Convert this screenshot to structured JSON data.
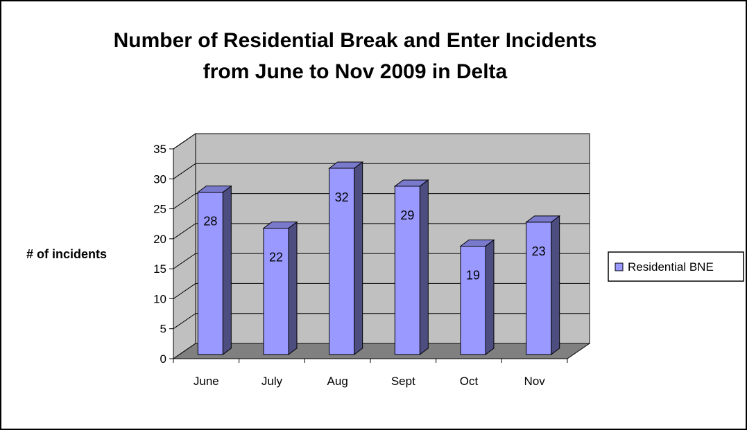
{
  "chart_data": {
    "type": "bar",
    "title_line1": "Number of Residential Break and Enter Incidents",
    "title_line2": "from June to Nov 2009 in Delta",
    "xlabel": "",
    "ylabel": "# of incidents",
    "categories": [
      "June",
      "July",
      "Aug",
      "Sept",
      "Oct",
      "Nov"
    ],
    "series": [
      {
        "name": "Residential BNE",
        "values": [
          28,
          22,
          32,
          29,
          19,
          23
        ]
      }
    ],
    "ylim": [
      0,
      35
    ],
    "yticks": [
      0,
      5,
      10,
      15,
      20,
      25,
      30,
      35
    ],
    "grid": true,
    "legend_position": "right",
    "colors": {
      "bar_front": "#9999ff",
      "bar_side": "#4d4d80",
      "bar_top": "#7a7acc",
      "wall": "#c0c0c0",
      "floor": "#808080"
    }
  }
}
